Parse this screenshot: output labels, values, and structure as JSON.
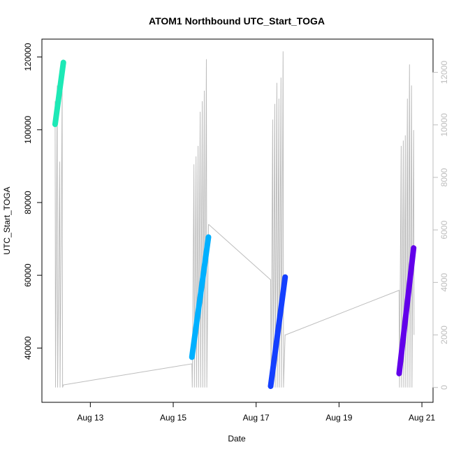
{
  "chart_data": {
    "type": "line",
    "title": "ATOM1 Northbound UTC_Start_TOGA",
    "xlabel": "Date",
    "ylabel": "UTC_Start_TOGA",
    "x_ticks": [
      "Aug 13",
      "Aug 15",
      "Aug 17",
      "Aug 19",
      "Aug 21"
    ],
    "y_ticks": [
      "40000",
      "60000",
      "80000",
      "100000",
      "120000"
    ],
    "y_right_ticks": [
      "0",
      "2000",
      "4000",
      "6000",
      "8000",
      "10000",
      "12000"
    ],
    "xlim_days": [
      12.0,
      21.1
    ],
    "ylim": [
      27000,
      123000
    ],
    "y_right_lim": [
      -300,
      13000
    ],
    "colors": {
      "background_line": "#bdbdbd",
      "right_axis": "#bdbdbd"
    },
    "series": [
      {
        "color": "#1de9b6",
        "x_days": [
          12.15,
          12.35
        ],
        "y": [
          101500,
          118500
        ]
      },
      {
        "color": "#00b0ff",
        "x_days": [
          15.45,
          15.85
        ],
        "y": [
          37500,
          70500
        ]
      },
      {
        "color": "#1440ff",
        "x_days": [
          17.35,
          17.7
        ],
        "y": [
          29500,
          59500
        ]
      },
      {
        "color": "#6200ea",
        "x_days": [
          20.45,
          20.8
        ],
        "y": [
          33000,
          67500
        ]
      }
    ],
    "background_series": {
      "x_days": [
        12.15,
        12.16,
        12.2,
        12.21,
        12.26,
        12.27,
        12.32,
        12.33,
        12.35,
        12.36,
        15.45,
        15.46,
        15.5,
        15.51,
        15.55,
        15.56,
        15.6,
        15.61,
        15.65,
        15.66,
        15.7,
        15.71,
        15.75,
        15.76,
        15.8,
        15.81,
        15.85,
        15.86,
        17.35,
        17.36,
        17.4,
        17.41,
        17.45,
        17.46,
        17.5,
        17.51,
        17.55,
        17.56,
        17.6,
        17.61,
        17.65,
        17.66,
        17.7,
        17.71,
        20.45,
        20.46,
        20.5,
        20.51,
        20.55,
        20.56,
        20.6,
        20.61,
        20.65,
        20.66,
        20.7,
        20.71,
        20.75,
        20.76,
        20.8,
        20.81
      ],
      "y_right": [
        10900,
        0,
        11500,
        0,
        8600,
        0,
        11300,
        0,
        100,
        100,
        900,
        0,
        8500,
        0,
        8800,
        0,
        9200,
        0,
        10500,
        0,
        10900,
        0,
        11300,
        0,
        12500,
        0,
        6200,
        6200,
        4100,
        0,
        10200,
        0,
        10800,
        0,
        11600,
        0,
        11000,
        0,
        11800,
        0,
        12800,
        0,
        2000,
        2000,
        3700,
        0,
        9200,
        0,
        9400,
        0,
        9600,
        0,
        11000,
        0,
        12300,
        0,
        11500,
        0,
        9800,
        2000
      ]
    }
  }
}
